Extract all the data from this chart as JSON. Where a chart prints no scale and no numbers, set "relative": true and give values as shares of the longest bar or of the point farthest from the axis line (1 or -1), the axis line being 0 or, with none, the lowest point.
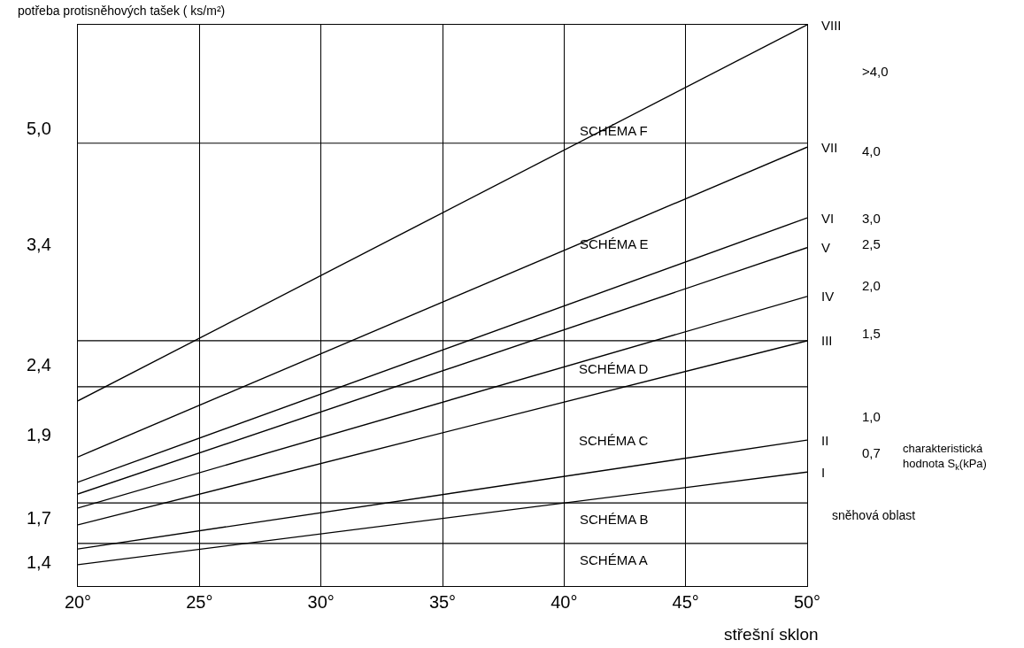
{
  "chart_data": {
    "type": "line",
    "relative": true,
    "title": "potřeba protisněhových tašek ( ks/m²)",
    "xlabel": "střešní sklon",
    "x": [
      20,
      50
    ],
    "xlim": [
      20,
      50
    ],
    "xticks": [
      {
        "value": 20,
        "label": "20°"
      },
      {
        "value": 25,
        "label": "25°"
      },
      {
        "value": 30,
        "label": "30°"
      },
      {
        "value": 35,
        "label": "35°"
      },
      {
        "value": 40,
        "label": "40°"
      },
      {
        "value": 45,
        "label": "45°"
      },
      {
        "value": 50,
        "label": "50°"
      }
    ],
    "grid": "x",
    "legend": false,
    "marker": "none",
    "line_style": "solid",
    "series": [
      {
        "name": "VIII",
        "color": "#000000",
        "values": [
          0.33,
          1.0
        ]
      },
      {
        "name": "VII",
        "color": "#000000",
        "values": [
          0.23,
          0.782
        ]
      },
      {
        "name": "VI",
        "color": "#000000",
        "values": [
          0.185,
          0.656
        ]
      },
      {
        "name": "V",
        "color": "#000000",
        "values": [
          0.164,
          0.603
        ]
      },
      {
        "name": "IV",
        "color": "#000000",
        "values": [
          0.139,
          0.516
        ]
      },
      {
        "name": "III",
        "color": "#000000",
        "values": [
          0.109,
          0.437
        ]
      },
      {
        "name": "II",
        "color": "#000000",
        "values": [
          0.066,
          0.26
        ]
      },
      {
        "name": "I",
        "color": "#000000",
        "values": [
          0.038,
          0.203
        ]
      }
    ],
    "ref_lines": [
      {
        "axis": "y",
        "value": 0.789,
        "color": "#000000"
      },
      {
        "axis": "y",
        "value": 0.437,
        "color": "#000000"
      },
      {
        "axis": "y",
        "value": 0.355,
        "color": "#000000"
      },
      {
        "axis": "y",
        "value": 0.148,
        "color": "#000000"
      },
      {
        "axis": "y",
        "value": 0.076,
        "color": "#000000"
      }
    ],
    "annotations": [
      "SCHÉMA F",
      "SCHÉMA E",
      "SCHÉMA D",
      "SCHÉMA C",
      "SCHÉMA B",
      "SCHÉMA A",
      "5,0",
      "3,4",
      "2,4",
      "1,9",
      "1,7",
      "1,4",
      ">4,0",
      "4,0",
      "3,0",
      "2,5",
      "2,0",
      "1,5",
      "1,0",
      "0,7",
      "charakteristická hodnota S$_{k}$(kPa)",
      "sněhová oblast"
    ]
  }
}
